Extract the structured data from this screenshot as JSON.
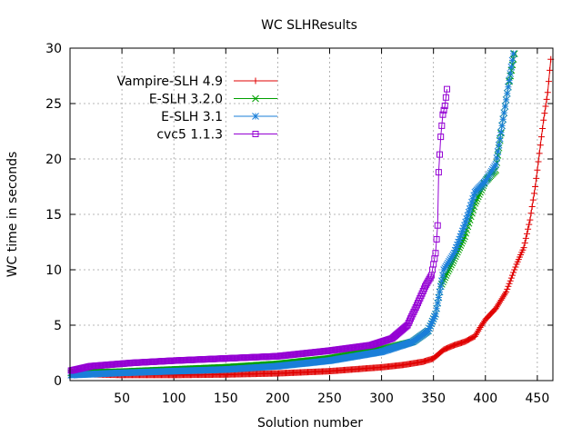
{
  "chart_data": {
    "type": "line",
    "title": "WC SLHResults",
    "xlabel": "Solution number",
    "ylabel": "WC time in seconds",
    "xlim": [
      0,
      465
    ],
    "ylim": [
      0,
      30
    ],
    "xticks": [
      50,
      100,
      150,
      200,
      250,
      300,
      350,
      400,
      450
    ],
    "yticks": [
      0,
      5,
      10,
      15,
      20,
      25,
      30
    ],
    "grid": true,
    "legend_position": "top-left",
    "series": [
      {
        "name": "Vampire-SLH 4.9",
        "color": "#e00000",
        "marker": "plus",
        "points": [
          [
            1,
            0.8
          ],
          [
            10,
            0.6
          ],
          [
            50,
            0.5
          ],
          [
            100,
            0.5
          ],
          [
            150,
            0.55
          ],
          [
            200,
            0.65
          ],
          [
            250,
            0.85
          ],
          [
            300,
            1.2
          ],
          [
            320,
            1.4
          ],
          [
            340,
            1.7
          ],
          [
            350,
            2.0
          ],
          [
            360,
            2.8
          ],
          [
            370,
            3.2
          ],
          [
            380,
            3.5
          ],
          [
            390,
            4.0
          ],
          [
            395,
            4.8
          ],
          [
            400,
            5.5
          ],
          [
            410,
            6.5
          ],
          [
            420,
            8.0
          ],
          [
            430,
            10.5
          ],
          [
            437,
            12.0
          ],
          [
            443,
            14.5
          ],
          [
            448,
            17.5
          ],
          [
            452,
            20.5
          ],
          [
            456,
            23.5
          ],
          [
            460,
            26.0
          ],
          [
            463,
            29.0
          ]
        ]
      },
      {
        "name": "E-SLH 3.2.0",
        "color": "#00a000",
        "marker": "cross",
        "points": [
          [
            1,
            0.7
          ],
          [
            50,
            0.8
          ],
          [
            100,
            1.0
          ],
          [
            150,
            1.2
          ],
          [
            200,
            1.5
          ],
          [
            250,
            2.0
          ],
          [
            300,
            2.8
          ],
          [
            330,
            3.5
          ],
          [
            345,
            4.5
          ],
          [
            352,
            6.0
          ],
          [
            357,
            8.5
          ],
          [
            362,
            9.5
          ],
          [
            370,
            11.0
          ],
          [
            380,
            13.0
          ],
          [
            390,
            16.0
          ],
          [
            400,
            18.0
          ],
          [
            410,
            19.0
          ],
          [
            416,
            23.0
          ],
          [
            422,
            26.5
          ],
          [
            428,
            29.5
          ]
        ]
      },
      {
        "name": "E-SLH 3.1",
        "color": "#1a7fd9",
        "marker": "star",
        "points": [
          [
            1,
            0.5
          ],
          [
            50,
            0.7
          ],
          [
            100,
            0.85
          ],
          [
            150,
            1.0
          ],
          [
            200,
            1.3
          ],
          [
            250,
            1.8
          ],
          [
            300,
            2.6
          ],
          [
            330,
            3.5
          ],
          [
            345,
            4.5
          ],
          [
            352,
            6.0
          ],
          [
            357,
            8.5
          ],
          [
            360,
            10.0
          ],
          [
            370,
            11.5
          ],
          [
            380,
            14.0
          ],
          [
            390,
            17.0
          ],
          [
            400,
            18.0
          ],
          [
            410,
            19.5
          ],
          [
            416,
            23.0
          ],
          [
            422,
            26.5
          ],
          [
            427,
            29.5
          ]
        ]
      },
      {
        "name": "cvc5 1.1.3",
        "color": "#9400d3",
        "marker": "square",
        "points": [
          [
            1,
            0.9
          ],
          [
            20,
            1.3
          ],
          [
            60,
            1.6
          ],
          [
            100,
            1.8
          ],
          [
            150,
            2.0
          ],
          [
            200,
            2.2
          ],
          [
            250,
            2.7
          ],
          [
            290,
            3.2
          ],
          [
            310,
            3.8
          ],
          [
            325,
            5.0
          ],
          [
            335,
            7.0
          ],
          [
            342,
            8.5
          ],
          [
            348,
            9.5
          ],
          [
            352,
            11.5
          ],
          [
            354,
            14.0
          ],
          [
            355,
            18.8
          ],
          [
            357,
            22.0
          ],
          [
            359,
            24.0
          ],
          [
            361,
            24.8
          ],
          [
            363,
            26.3
          ]
        ]
      }
    ]
  }
}
